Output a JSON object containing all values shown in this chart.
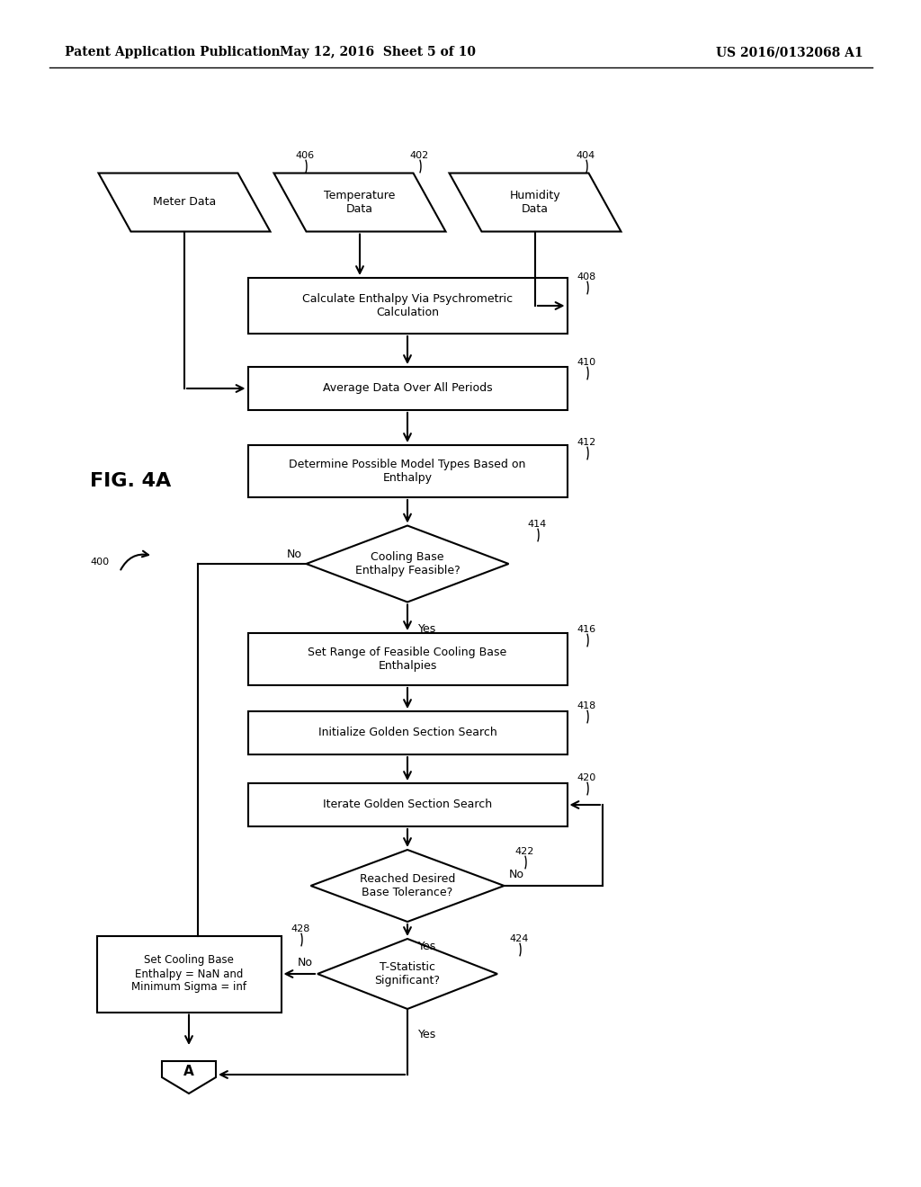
{
  "header_left": "Patent Application Publication",
  "header_mid": "May 12, 2016  Sheet 5 of 10",
  "header_right": "US 2016/0132068 A1",
  "fig_label": "FIG. 4A",
  "fig_number": "400",
  "background_color": "#ffffff"
}
